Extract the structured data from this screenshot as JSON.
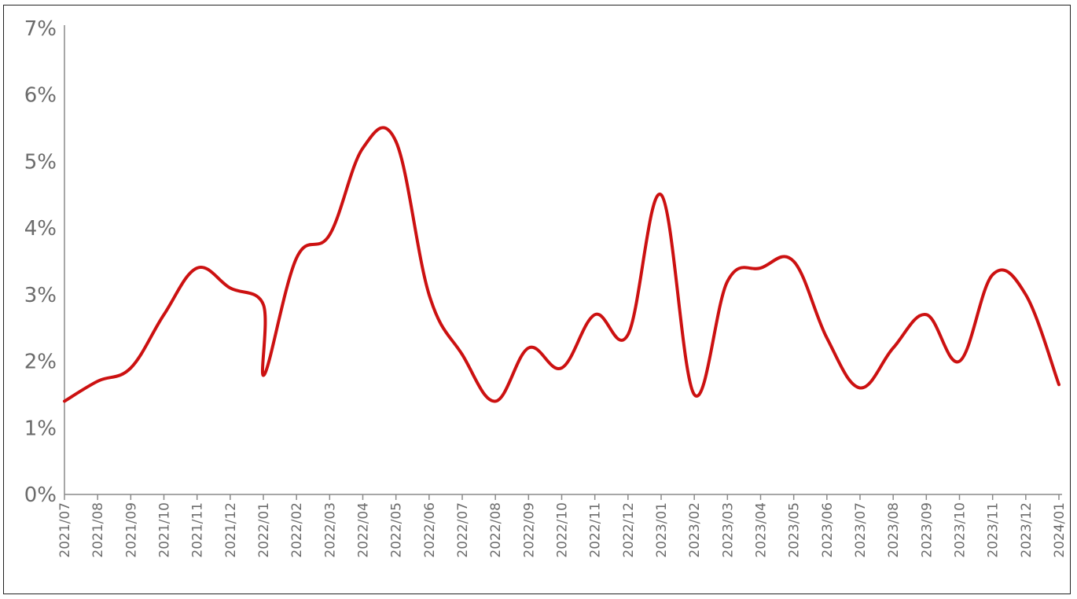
{
  "chart_data": {
    "type": "line",
    "title": "",
    "xlabel": "",
    "ylabel": "",
    "ylim": [
      0,
      7
    ],
    "y_ticks": [
      "0%",
      "1%",
      "2%",
      "3%",
      "4%",
      "5%",
      "6%",
      "7%"
    ],
    "grid": false,
    "legend": "none",
    "categories": [
      "2021/07",
      "2021/08",
      "2021/09",
      "2021/10",
      "2021/11",
      "2021/12",
      "2022/01",
      "2022/02",
      "2022/03",
      "2022/04",
      "2022/05",
      "2022/06",
      "2022/07",
      "2022/08",
      "2022/09",
      "2022/10",
      "2022/11",
      "2022/12",
      "2023/01",
      "2023/02",
      "2023/03",
      "2023/04",
      "2023/05",
      "2023/06",
      "2023/07",
      "2023/08",
      "2023/09",
      "2023/10",
      "2023/11",
      "2023/12",
      "2024/01"
    ],
    "series": [
      {
        "color": "#cc1111",
        "points": [
          [
            "2021/07",
            1.4
          ],
          [
            "2021/08",
            1.7
          ],
          [
            "2021/09",
            1.9
          ],
          [
            "2021/10",
            2.7
          ],
          [
            "2021/11",
            3.4
          ],
          [
            "2021/12",
            3.1
          ],
          [
            "2022/01",
            2.85
          ],
          [
            "2022/01",
            1.8
          ],
          [
            "2022/02",
            3.55
          ],
          [
            "2022/03",
            3.9
          ],
          [
            "2022/04",
            5.2
          ],
          [
            "2022/05",
            5.3
          ],
          [
            "2022/06",
            3.0
          ],
          [
            "2022/07",
            2.1
          ],
          [
            "2022/08",
            1.4
          ],
          [
            "2022/09",
            2.2
          ],
          [
            "2022/10",
            1.9
          ],
          [
            "2022/11",
            2.7
          ],
          [
            "2022/12",
            2.4
          ],
          [
            "2023/01",
            4.5
          ],
          [
            "2023/02",
            1.5
          ],
          [
            "2023/03",
            3.2
          ],
          [
            "2023/04",
            3.4
          ],
          [
            "2023/05",
            3.5
          ],
          [
            "2023/06",
            2.35
          ],
          [
            "2023/07",
            1.6
          ],
          [
            "2023/08",
            2.2
          ],
          [
            "2023/09",
            2.7
          ],
          [
            "2023/10",
            2.0
          ],
          [
            "2023/11",
            3.3
          ],
          [
            "2023/12",
            3.0
          ],
          [
            "2024/01",
            1.65
          ]
        ]
      }
    ]
  }
}
